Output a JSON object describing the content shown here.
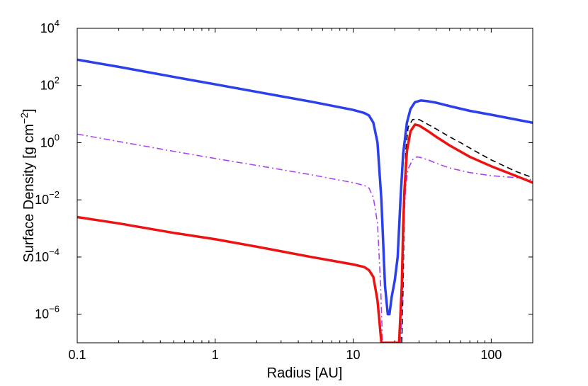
{
  "chart_data": {
    "type": "line",
    "title": "",
    "xlabel": "Radius [AU]",
    "ylabel": {
      "prefix": "Surface Density [g cm",
      "sup": "−2",
      "suffix": "]"
    },
    "xscale": "log",
    "yscale": "log",
    "xlim": [
      0.1,
      200
    ],
    "ylim": [
      1e-07,
      10000
    ],
    "grid": false,
    "legend": "none",
    "x_ticks": [
      {
        "value": 0.1,
        "label": "0.1"
      },
      {
        "value": 1,
        "label": "1"
      },
      {
        "value": 10,
        "label": "10"
      },
      {
        "value": 100,
        "label": "100"
      }
    ],
    "y_ticks": [
      {
        "value": 1e-06,
        "base": "10",
        "exp": "−6"
      },
      {
        "value": 0.0001,
        "base": "10",
        "exp": "−4"
      },
      {
        "value": 0.01,
        "base": "10",
        "exp": "−2"
      },
      {
        "value": 1,
        "base": "10",
        "exp": "0"
      },
      {
        "value": 100,
        "base": "10",
        "exp": "2"
      },
      {
        "value": 10000,
        "base": "10",
        "exp": "4"
      }
    ],
    "series": [
      {
        "color": "#000000",
        "style": "dashed",
        "width": 1.6,
        "points": [
          [
            22.5,
            1e-07
          ],
          [
            23.0,
            1e-05
          ],
          [
            23.5,
            0.01
          ],
          [
            24.0,
            0.5
          ],
          [
            25.0,
            3.5
          ],
          [
            27.0,
            6.5
          ],
          [
            30.0,
            6.5
          ],
          [
            35.0,
            4.3
          ],
          [
            40.0,
            3.0
          ],
          [
            50.0,
            1.6
          ],
          [
            60.0,
            1.0
          ],
          [
            80.0,
            0.45
          ],
          [
            100.0,
            0.25
          ],
          [
            150.0,
            0.1
          ],
          [
            200.0,
            0.06
          ]
        ]
      },
      {
        "color": "#aa44ee",
        "style": "dashdot",
        "width": 1.6,
        "points": [
          [
            0.1,
            2.0
          ],
          [
            0.2,
            1.1
          ],
          [
            0.5,
            0.5
          ],
          [
            1.0,
            0.28
          ],
          [
            2.0,
            0.16
          ],
          [
            5.0,
            0.075
          ],
          [
            10.0,
            0.04
          ],
          [
            12.0,
            0.032
          ],
          [
            13.0,
            0.026
          ],
          [
            14.0,
            0.012
          ],
          [
            15.0,
            0.0015
          ],
          [
            15.8,
            1e-05
          ],
          [
            16.3,
            1e-07
          ],
          [
            22.0,
            1e-07
          ],
          [
            22.6,
            1e-06
          ],
          [
            23.2,
            0.001
          ],
          [
            24.0,
            0.03
          ],
          [
            25.0,
            0.12
          ],
          [
            27.0,
            0.26
          ],
          [
            29.0,
            0.32
          ],
          [
            31.0,
            0.3
          ],
          [
            35.0,
            0.25
          ],
          [
            40.0,
            0.19
          ],
          [
            50.0,
            0.13
          ],
          [
            70.0,
            0.09
          ],
          [
            100.0,
            0.07
          ],
          [
            150.0,
            0.06
          ],
          [
            200.0,
            0.05
          ]
        ]
      },
      {
        "color": "#2b3fec",
        "style": "solid",
        "width": 3.5,
        "points": [
          [
            0.1,
            800
          ],
          [
            0.2,
            450
          ],
          [
            0.5,
            200
          ],
          [
            1.0,
            110
          ],
          [
            2.0,
            60
          ],
          [
            5.0,
            27
          ],
          [
            10.0,
            14
          ],
          [
            12.0,
            11
          ],
          [
            13.0,
            9
          ],
          [
            14.0,
            5
          ],
          [
            15.0,
            1
          ],
          [
            16.0,
            0.01
          ],
          [
            17.0,
            1e-05
          ],
          [
            17.8,
            1e-06
          ],
          [
            18.3,
            1e-06
          ],
          [
            19.0,
            4e-06
          ],
          [
            20.0,
            1.5e-05
          ],
          [
            21.0,
            0.0001
          ],
          [
            22.0,
            0.01
          ],
          [
            23.0,
            0.4
          ],
          [
            24.5,
            5
          ],
          [
            26.0,
            15
          ],
          [
            28.0,
            26
          ],
          [
            31.0,
            30
          ],
          [
            35.0,
            28
          ],
          [
            40.0,
            25
          ],
          [
            50.0,
            19
          ],
          [
            70.0,
            13
          ],
          [
            100.0,
            9.5
          ],
          [
            150.0,
            6.5
          ],
          [
            200.0,
            5
          ]
        ]
      },
      {
        "color": "#ee1111",
        "style": "solid",
        "width": 3.5,
        "points": [
          [
            0.1,
            0.0025
          ],
          [
            0.2,
            0.0015
          ],
          [
            0.5,
            0.0007
          ],
          [
            1.0,
            0.00042
          ],
          [
            2.0,
            0.00023
          ],
          [
            5.0,
            0.0001
          ],
          [
            10.0,
            5.5e-05
          ],
          [
            12.0,
            4.5e-05
          ],
          [
            13.0,
            3.5e-05
          ],
          [
            14.0,
            2e-05
          ],
          [
            15.0,
            3e-06
          ],
          [
            16.0,
            1e-07
          ],
          [
            21.5,
            1e-07
          ],
          [
            22.0,
            1e-06
          ],
          [
            22.5,
            1e-05
          ],
          [
            23.0,
            0.001
          ],
          [
            23.5,
            0.02
          ],
          [
            24.5,
            0.5
          ],
          [
            26.0,
            2.5
          ],
          [
            28.0,
            4.3
          ],
          [
            30.0,
            4.0
          ],
          [
            35.0,
            2.5
          ],
          [
            40.0,
            1.6
          ],
          [
            50.0,
            0.8
          ],
          [
            70.0,
            0.32
          ],
          [
            100.0,
            0.15
          ],
          [
            150.0,
            0.07
          ],
          [
            200.0,
            0.04
          ]
        ]
      }
    ]
  }
}
